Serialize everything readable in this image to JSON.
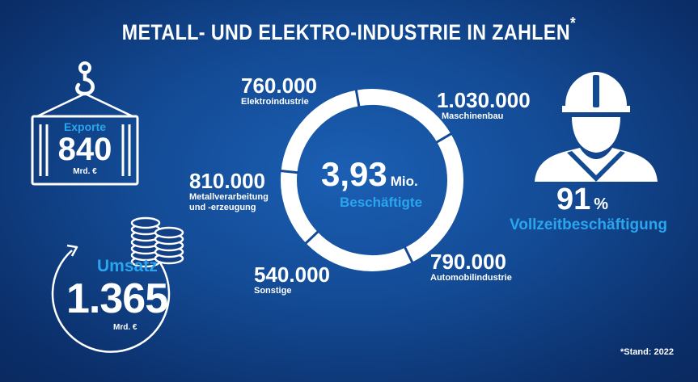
{
  "title": "METALL- UND ELEKTRO-INDUSTRIE IN ZAHLEN",
  "title_mark": "*",
  "colors": {
    "accent": "#2aa5ee",
    "ring": "#ffffff",
    "background": "#134a94"
  },
  "exports": {
    "label": "Exporte",
    "value": "840",
    "unit": "Mrd. €"
  },
  "revenue": {
    "label": "Umsatz",
    "value": "1.365",
    "unit": "Mrd. €"
  },
  "employees": {
    "value": "3,93",
    "unit": "Mio.",
    "label": "Beschäftigte"
  },
  "fulltime": {
    "value": "91",
    "unit": "%",
    "label": "Vollzeitbeschäftigung"
  },
  "footnote": "*Stand: 2022",
  "icons": [
    "crane-hook-icon",
    "container-icon",
    "coin-stack-icon",
    "circular-arrow-icon",
    "worker-helmet-icon"
  ],
  "chart_data": {
    "type": "pie",
    "categories": [
      "Elektroindustrie",
      "Maschinenbau",
      "Automobilindustrie",
      "Sonstige",
      "Metallverarbeitung und -erzeugung"
    ],
    "values": [
      760000,
      1030000,
      790000,
      540000,
      810000
    ],
    "value_labels": [
      "760.000",
      "1.030.000",
      "790.000",
      "540.000",
      "810.000"
    ],
    "label_lines": [
      [
        "Elektroindustrie"
      ],
      [
        "Maschinenbau"
      ],
      [
        "Automobilindustrie"
      ],
      [
        "Sonstige"
      ],
      [
        "Metallverarbeitung",
        "und -erzeugung"
      ]
    ],
    "total_label": "3,93 Mio. Beschäftigte"
  }
}
